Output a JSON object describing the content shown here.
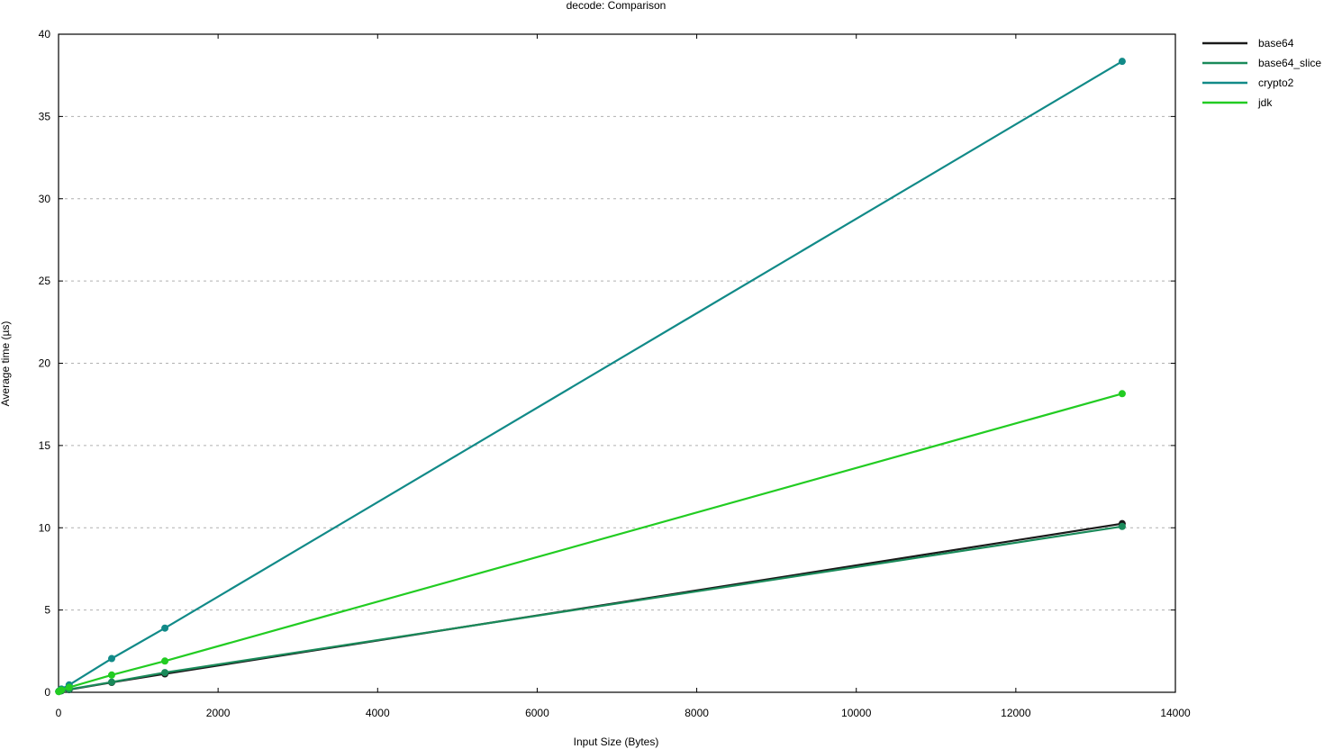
{
  "chart_data": {
    "type": "line",
    "title": "decode: Comparison",
    "xlabel": "Input Size (Bytes)",
    "ylabel": "Average time (µs)",
    "xlim": [
      0,
      14000
    ],
    "ylim": [
      0,
      40
    ],
    "xticks": [
      0,
      2000,
      4000,
      6000,
      8000,
      10000,
      12000,
      14000
    ],
    "yticks": [
      0,
      5,
      10,
      15,
      20,
      25,
      30,
      35,
      40
    ],
    "grid": "horizontal",
    "legend_position": "top-right",
    "series": [
      {
        "name": "base64",
        "color": "#1a1a1a",
        "x": [
          3,
          13,
          36,
          133,
          666,
          1333,
          13333
        ],
        "y": [
          0.05,
          0.07,
          0.09,
          0.16,
          0.6,
          1.12,
          10.25
        ]
      },
      {
        "name": "base64_slice",
        "color": "#1a8a5a",
        "x": [
          3,
          13,
          36,
          133,
          666,
          1333,
          13333
        ],
        "y": [
          0.05,
          0.07,
          0.1,
          0.18,
          0.62,
          1.2,
          10.08
        ]
      },
      {
        "name": "crypto2",
        "color": "#118a88",
        "x": [
          3,
          13,
          36,
          133,
          666,
          1333,
          13333
        ],
        "y": [
          0.05,
          0.1,
          0.2,
          0.45,
          2.05,
          3.9,
          38.35
        ]
      },
      {
        "name": "jdk",
        "color": "#22cc22",
        "x": [
          3,
          13,
          36,
          133,
          666,
          1333,
          13333
        ],
        "y": [
          0.04,
          0.08,
          0.14,
          0.3,
          1.05,
          1.9,
          18.15
        ]
      }
    ]
  }
}
